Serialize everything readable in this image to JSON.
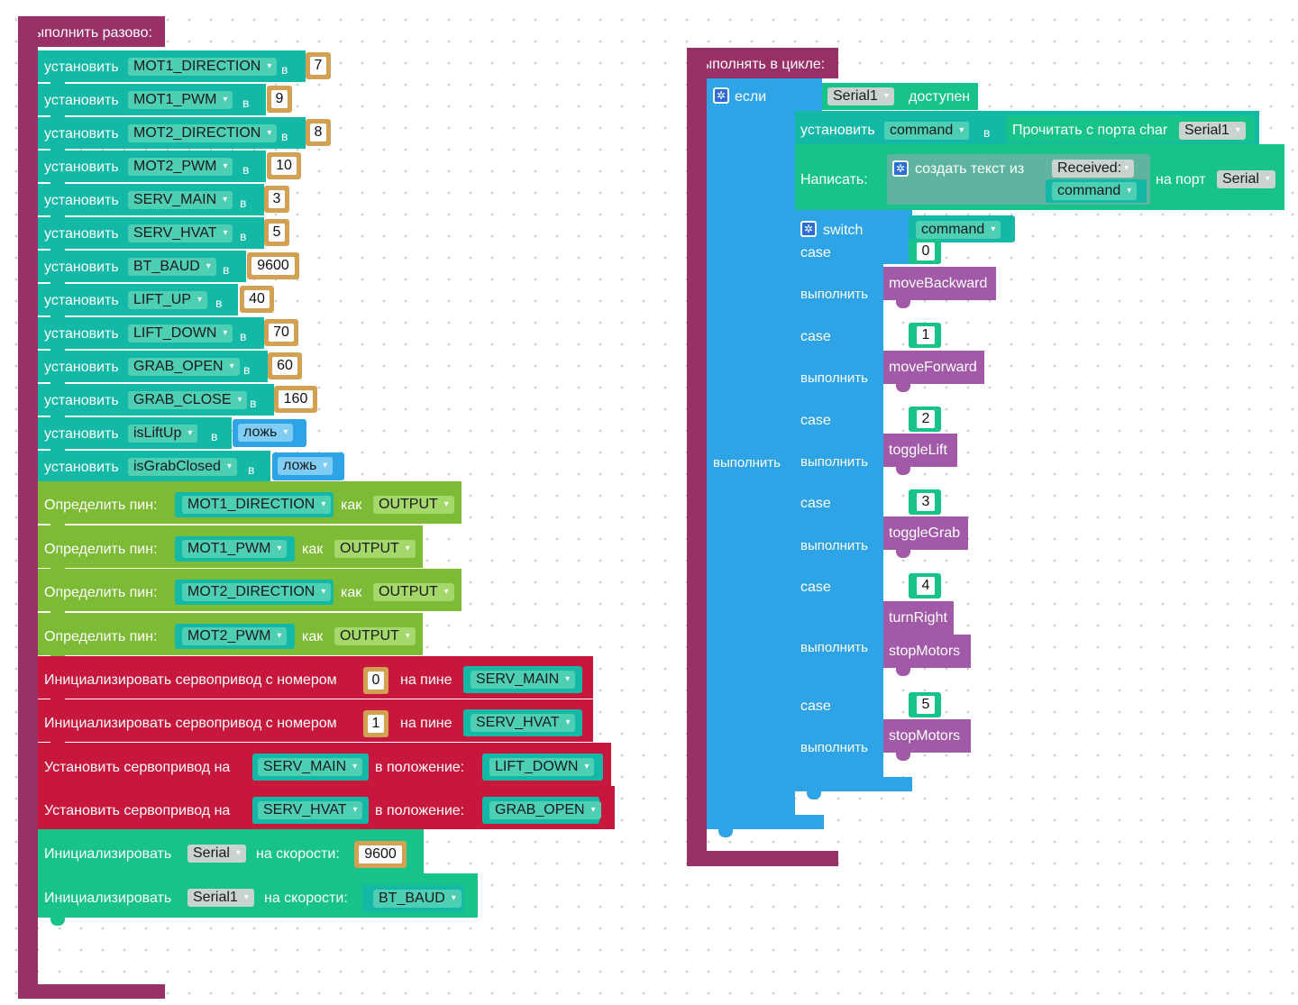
{
  "setup": {
    "title": "Выполнить разово:",
    "set_label": "установить",
    "in_label": "в",
    "vars": [
      {
        "name": "MOT1_DIRECTION",
        "value": "7"
      },
      {
        "name": "MOT1_PWM",
        "value": "9"
      },
      {
        "name": "MOT2_DIRECTION",
        "value": "8"
      },
      {
        "name": "MOT2_PWM",
        "value": "10"
      },
      {
        "name": "SERV_MAIN",
        "value": "3"
      },
      {
        "name": "SERV_HVAT",
        "value": "5"
      },
      {
        "name": "BT_BAUD",
        "value": "9600"
      },
      {
        "name": "LIFT_UP",
        "value": "40"
      },
      {
        "name": "LIFT_DOWN",
        "value": "70"
      },
      {
        "name": "GRAB_OPEN",
        "value": "60"
      },
      {
        "name": "GRAB_CLOSE",
        "value": "160"
      },
      {
        "name": "isLiftUp",
        "value": "ложь"
      },
      {
        "name": "isGrabClosed",
        "value": "ложь"
      }
    ],
    "pin_label": "Определить пин:",
    "as_label": "как",
    "pins": [
      {
        "name": "MOT1_DIRECTION",
        "mode": "OUTPUT"
      },
      {
        "name": "MOT1_PWM",
        "mode": "OUTPUT"
      },
      {
        "name": "MOT2_DIRECTION",
        "mode": "OUTPUT"
      },
      {
        "name": "MOT2_PWM",
        "mode": "OUTPUT"
      }
    ],
    "servo_init_label": "Инициализировать сервопривод с номером",
    "on_pin_label": "на пине",
    "servo_inits": [
      {
        "num": "0",
        "pin": "SERV_MAIN"
      },
      {
        "num": "1",
        "pin": "SERV_HVAT"
      }
    ],
    "servo_set_label": "Установить сервопривод на",
    "position_label": "в положение:",
    "servo_sets": [
      {
        "servo": "SERV_MAIN",
        "pos": "LIFT_DOWN"
      },
      {
        "servo": "SERV_HVAT",
        "pos": "GRAB_OPEN"
      }
    ],
    "serial_init_label": "Инициализировать",
    "speed_label": "на скорости:",
    "serial_inits": [
      {
        "port": "Serial",
        "speed": "9600"
      },
      {
        "port": "Serial1",
        "speed": "BT_BAUD"
      }
    ]
  },
  "loop": {
    "title": "Выполнять в цикле:",
    "if_label": "если",
    "do_label": "выполнить",
    "if_port": "Serial1",
    "available_label": "доступен",
    "set_label": "установить",
    "set_var": "command",
    "in_label": "в",
    "read_label": "Прочитать с порта char",
    "read_port": "Serial1",
    "write_label": "Написать:",
    "create_text_label": "создать текст из",
    "text_item": "Received:",
    "text_var": "command",
    "to_port_label": "на порт",
    "write_port": "Serial",
    "switch_label": "switch",
    "switch_var": "command",
    "case_label": "case",
    "cases": [
      {
        "value": "0",
        "calls": [
          "moveBackward"
        ]
      },
      {
        "value": "1",
        "calls": [
          "moveForward"
        ]
      },
      {
        "value": "2",
        "calls": [
          "toggleLift"
        ]
      },
      {
        "value": "3",
        "calls": [
          "toggleGrab"
        ]
      },
      {
        "value": "4",
        "calls": [
          "turnRight",
          "stopMotors"
        ]
      },
      {
        "value": "5",
        "calls": [
          "stopMotors"
        ]
      }
    ]
  },
  "colors": {
    "event": "#993168",
    "variable": "#14b8a6",
    "variable_field": "#4ecfb4",
    "number": "#d2a152",
    "boolean": "#2ea3e6",
    "pin": "#7dbb36",
    "servo": "#c8173d",
    "serial": "#17c28b",
    "control": "#2ea3e6",
    "function": "#a259a8"
  }
}
